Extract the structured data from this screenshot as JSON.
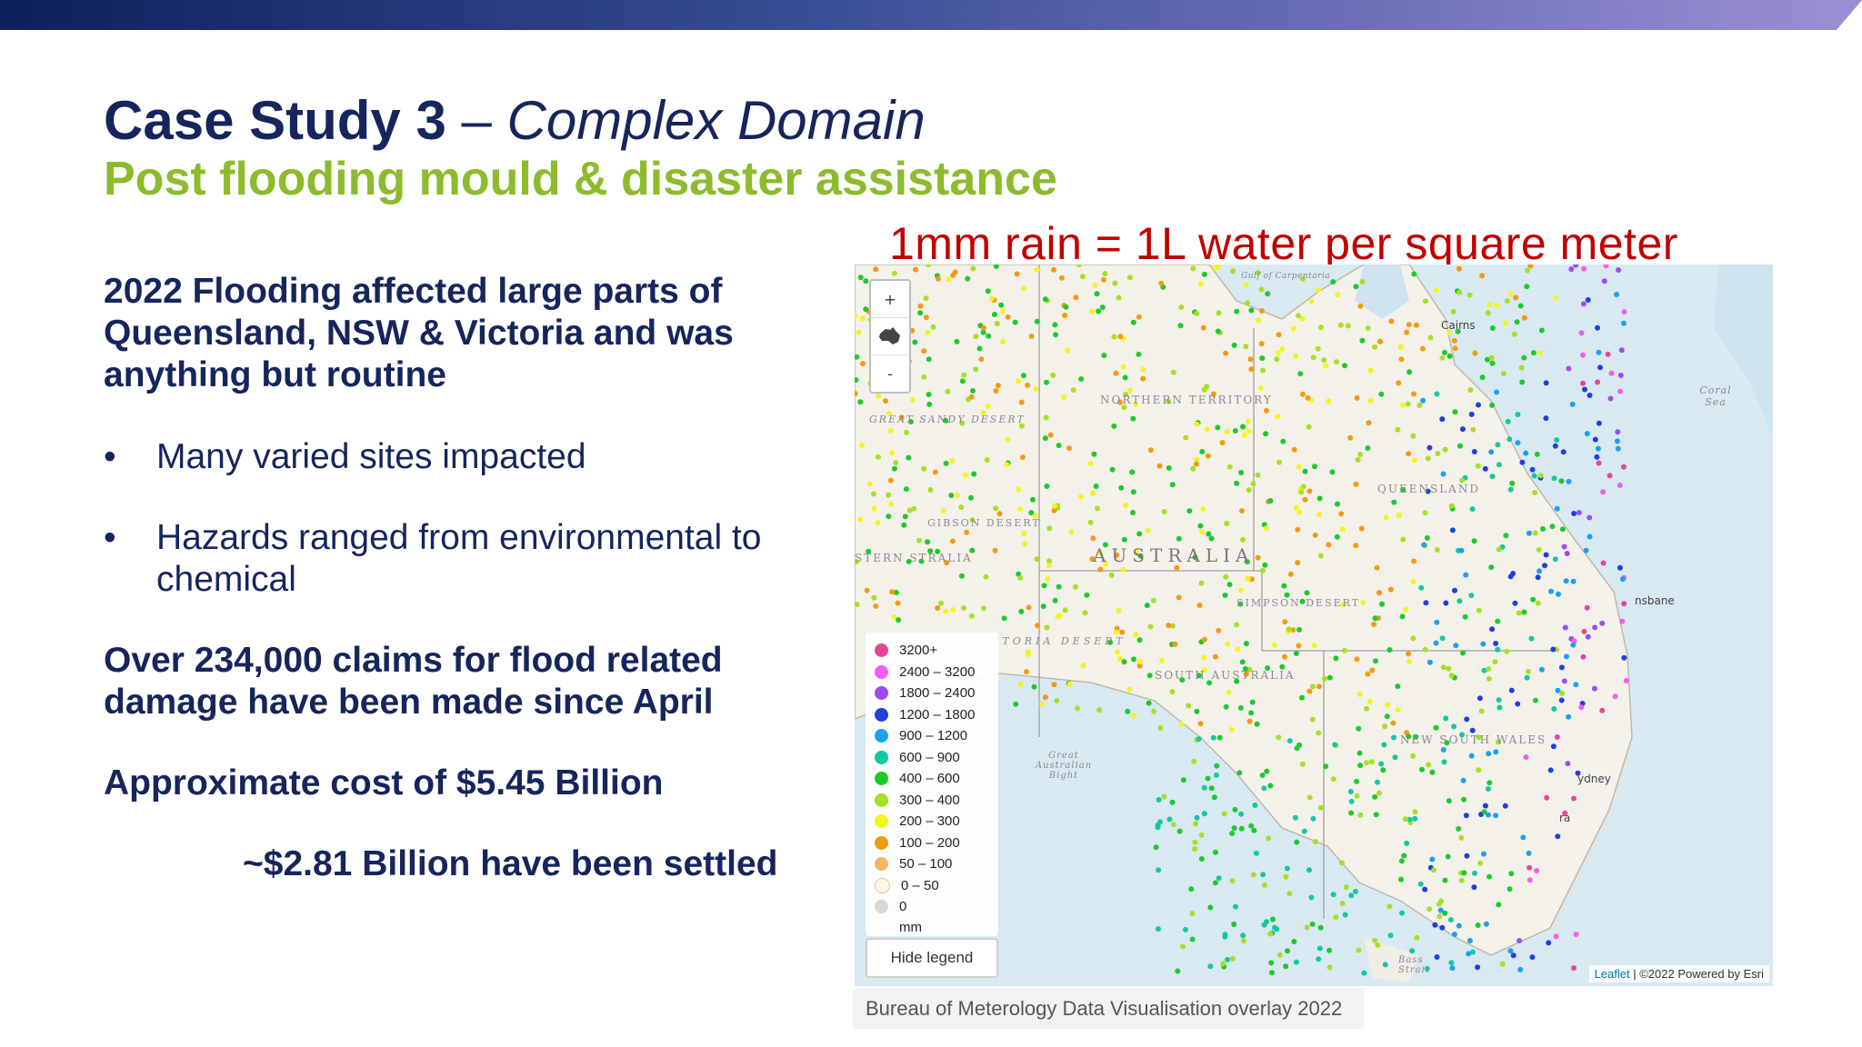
{
  "slide": {
    "title_main": "Case Study 3",
    "title_dash": " – ",
    "title_italic": "Complex Domain",
    "subtitle": "Post flooding mould & disaster assistance",
    "rain_note": "1mm rain = 1L water per square meter",
    "intro_lines": [
      "2022 Flooding affected large parts of",
      "Queensland, NSW & Victoria and was",
      "anything but routine"
    ],
    "bullets": [
      {
        "marker": "•",
        "lines": [
          "Many varied sites impacted"
        ]
      },
      {
        "marker": "•",
        "lines": [
          "Hazards ranged from environmental to",
          "chemical"
        ]
      }
    ],
    "claims_lines": [
      "Over 234,000 claims for flood related",
      "damage have been made since April"
    ],
    "cost": "Approximate cost of $5.45 Billion",
    "settled": "~$2.81 Billion have been settled",
    "caption": "Bureau of Meterology Data Visualisation overlay 2022"
  },
  "map": {
    "zoom_in": "+",
    "zoom_out": "-",
    "labels": {
      "gulf": "Gulf of Carpentaria",
      "northern_territory": "NORTHERN TERRITORY",
      "great_sandy": "GREAT SANDY DESERT",
      "gibson": "GIBSON DESERT",
      "western_australia": "STERN STRALIA",
      "australia": "AUSTRALIA",
      "queensland": "QUEENSLAND",
      "simpson": "SIMPSON DESERT",
      "victoria_desert": "CTORIA DESERT",
      "south_australia": "SOUTH AUSTRALIA",
      "nsw": "NEW SOUTH WALES",
      "bight": "Great Australian Bight",
      "bass": "Bass Strait",
      "coral": "Coral Sea",
      "cairns": "Cairns",
      "brisbane": "nsbane",
      "sydney": "ydney",
      "canberra": "ra"
    },
    "legend": [
      {
        "label": "3200+",
        "color": "#e8459a"
      },
      {
        "label": "2400 – 3200",
        "color": "#f15df0"
      },
      {
        "label": "1800 – 2400",
        "color": "#9b4cf0"
      },
      {
        "label": "1200 – 1800",
        "color": "#1f3fe0"
      },
      {
        "label": "900 – 1200",
        "color": "#1e9ff0"
      },
      {
        "label": "600 – 900",
        "color": "#13c9a0"
      },
      {
        "label": "400 – 600",
        "color": "#1ec92c"
      },
      {
        "label": "300 – 400",
        "color": "#a5e025"
      },
      {
        "label": "200 – 300",
        "color": "#f4f41e"
      },
      {
        "label": "100 – 200",
        "color": "#f39a12"
      },
      {
        "label": "50 – 100",
        "color": "#f6b46a"
      },
      {
        "label": "0 – 50",
        "color": "#fdf7e6"
      },
      {
        "label": "0",
        "color": "#d7d7d7"
      }
    ],
    "legend_unit": "mm",
    "hide_legend": "Hide legend",
    "attribution_leaflet": "Leaflet",
    "attribution_rest": " | ©2022 Powered by Esri"
  }
}
